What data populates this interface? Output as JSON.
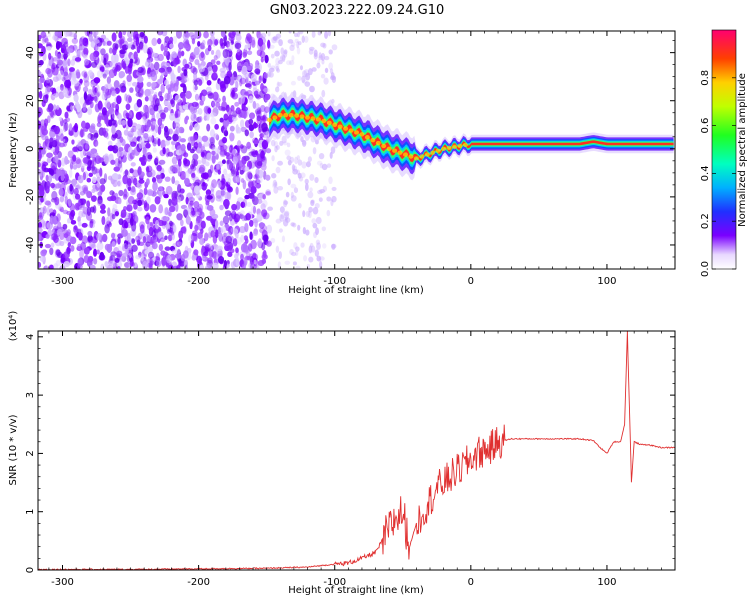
{
  "title": "GN03.2023.222.09.24.G10",
  "chart_data": [
    {
      "type": "heatmap",
      "xlabel": "Height of straight line (km)",
      "ylabel": "Frequency (Hz)",
      "xlim": [
        -318,
        150
      ],
      "ylim": [
        -50,
        49
      ],
      "xticks": [
        -300,
        -200,
        -100,
        0,
        100
      ],
      "yticks": [
        -40,
        -20,
        0,
        20,
        40
      ],
      "colorbar": {
        "label": "Normalized spectral amplitude",
        "range": [
          0,
          1
        ],
        "ticks": [
          0.0,
          0.2,
          0.4,
          0.6,
          0.8
        ],
        "colormap": "rainbow"
      },
      "ridge": {
        "x": [
          -148,
          -140,
          -130,
          -120,
          -110,
          -100,
          -90,
          -80,
          -70,
          -60,
          -50,
          -40,
          -30,
          -20,
          -10,
          0,
          10,
          30,
          60,
          80,
          90,
          100,
          110,
          120,
          150
        ],
        "frequency": [
          12,
          14,
          14,
          13,
          12,
          10,
          8,
          6,
          3,
          0,
          -2,
          -4,
          -2,
          0,
          1,
          2,
          2,
          2,
          2,
          2,
          3,
          2,
          2,
          2,
          2
        ]
      },
      "noise_region": {
        "x_from": -318,
        "x_to": -148,
        "scattered_to": -100
      }
    },
    {
      "type": "line",
      "xlabel": "Height of straight line (km)",
      "ylabel": "SNR (10 * v/v)",
      "scale_label": "(x10⁴)",
      "xlim": [
        -318,
        150
      ],
      "ylim": [
        0,
        4.1
      ],
      "xticks": [
        -300,
        -200,
        -100,
        0,
        100
      ],
      "yticks": [
        0,
        1,
        2,
        3,
        4
      ],
      "color": "#e03030",
      "series": [
        {
          "x": [
            -318,
            -250,
            -200,
            -150,
            -120,
            -100,
            -90,
            -80,
            -70,
            -65,
            -60,
            -55,
            -50,
            -45,
            -40,
            -35,
            -30,
            -25,
            -20,
            -15,
            -10,
            -5,
            0,
            5,
            10,
            15,
            20,
            30,
            40,
            50,
            60,
            70,
            80,
            90,
            95,
            100,
            105,
            110,
            113,
            115,
            118,
            120,
            125,
            130,
            140,
            150
          ],
          "y": [
            0.01,
            0.01,
            0.02,
            0.03,
            0.05,
            0.1,
            0.12,
            0.2,
            0.3,
            0.5,
            0.7,
            0.9,
            1.0,
            0.4,
            0.8,
            1.0,
            1.2,
            1.4,
            1.5,
            1.6,
            1.7,
            1.8,
            1.9,
            2.0,
            2.05,
            2.1,
            2.2,
            2.25,
            2.25,
            2.25,
            2.25,
            2.25,
            2.25,
            2.22,
            2.1,
            2.0,
            2.2,
            2.2,
            2.5,
            4.1,
            1.5,
            2.2,
            2.15,
            2.15,
            2.1,
            2.1
          ]
        }
      ]
    }
  ]
}
